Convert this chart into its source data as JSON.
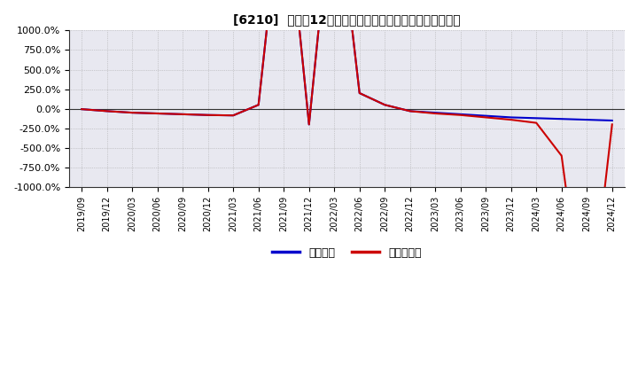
{
  "title": "[6210]  利益の12か月移動合計の対前年同期増減率の推移",
  "legend_labels": [
    "経常利益",
    "当期純利益"
  ],
  "line_colors": [
    "#0000cc",
    "#cc0000"
  ],
  "ylim": [
    -1000,
    1000
  ],
  "yticks": [
    -1000,
    -750,
    -500,
    -250,
    0,
    250,
    500,
    750,
    1000
  ],
  "ytick_labels": [
    "-1000.0%",
    "-750.0%",
    "-500.0%",
    "-250.0%",
    "0.0%",
    "250.0%",
    "500.0%",
    "750.0%",
    "1000.0%"
  ],
  "background_color": "#ffffff",
  "plot_bg_color": "#e8e8f0",
  "grid_color": "#aaaaaa",
  "x_labels": [
    "2019/09",
    "2019/12",
    "2020/03",
    "2020/06",
    "2020/09",
    "2020/12",
    "2021/03",
    "2021/06",
    "2021/09",
    "2021/12",
    "2022/03",
    "2022/06",
    "2022/09",
    "2022/12",
    "2023/03",
    "2023/06",
    "2023/09",
    "2023/12",
    "2024/03",
    "2024/06",
    "2024/09",
    "2024/12"
  ],
  "operating_profit": [
    -5,
    -30,
    -50,
    -60,
    -70,
    -80,
    -85,
    50,
    3000,
    -200,
    3000,
    200,
    50,
    -30,
    -50,
    -70,
    -90,
    -110,
    -120,
    -130,
    -140,
    -150
  ],
  "net_profit": [
    -5,
    -30,
    -50,
    -60,
    -70,
    -80,
    -85,
    50,
    3000,
    -200,
    3000,
    200,
    50,
    -30,
    -60,
    -80,
    -110,
    -140,
    -180,
    -600,
    -3000,
    -200
  ]
}
